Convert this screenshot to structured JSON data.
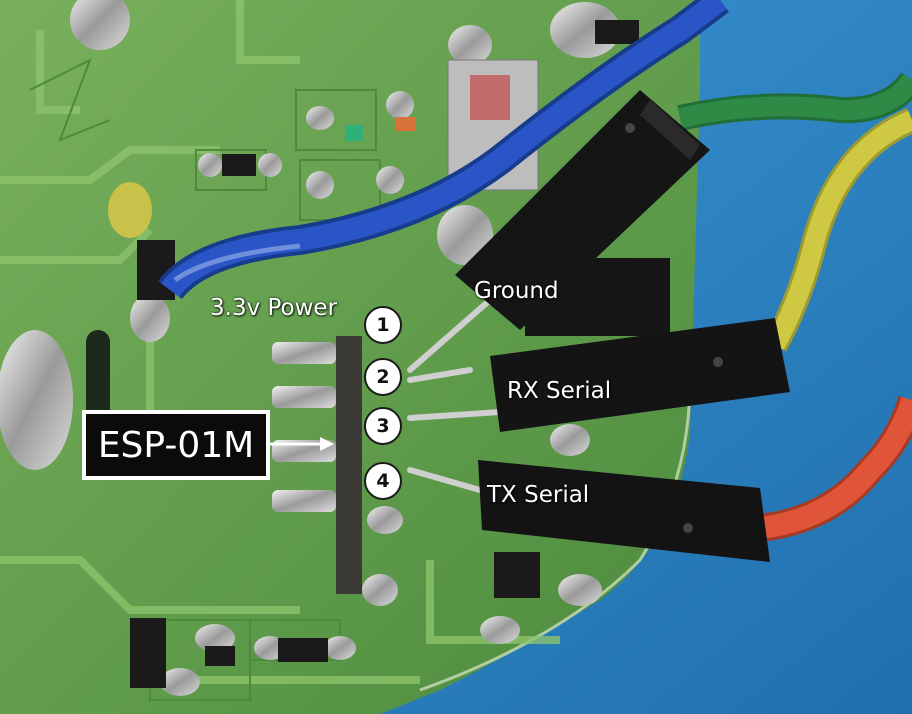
{
  "annotations": {
    "module": "ESP-01M",
    "power": "3.3v Power",
    "ground": "Ground",
    "rx": "RX Serial",
    "tx": "TX Serial"
  },
  "pins": [
    "1",
    "2",
    "3",
    "4"
  ],
  "colors": {
    "pcb_green": "#5f9c4a",
    "background_blue": "#2f86c4",
    "wire_blue": "#2a55c6",
    "wire_green": "#2e8a45",
    "wire_yellow": "#cfc842",
    "wire_red": "#e0553a",
    "connector_black": "#151515"
  }
}
